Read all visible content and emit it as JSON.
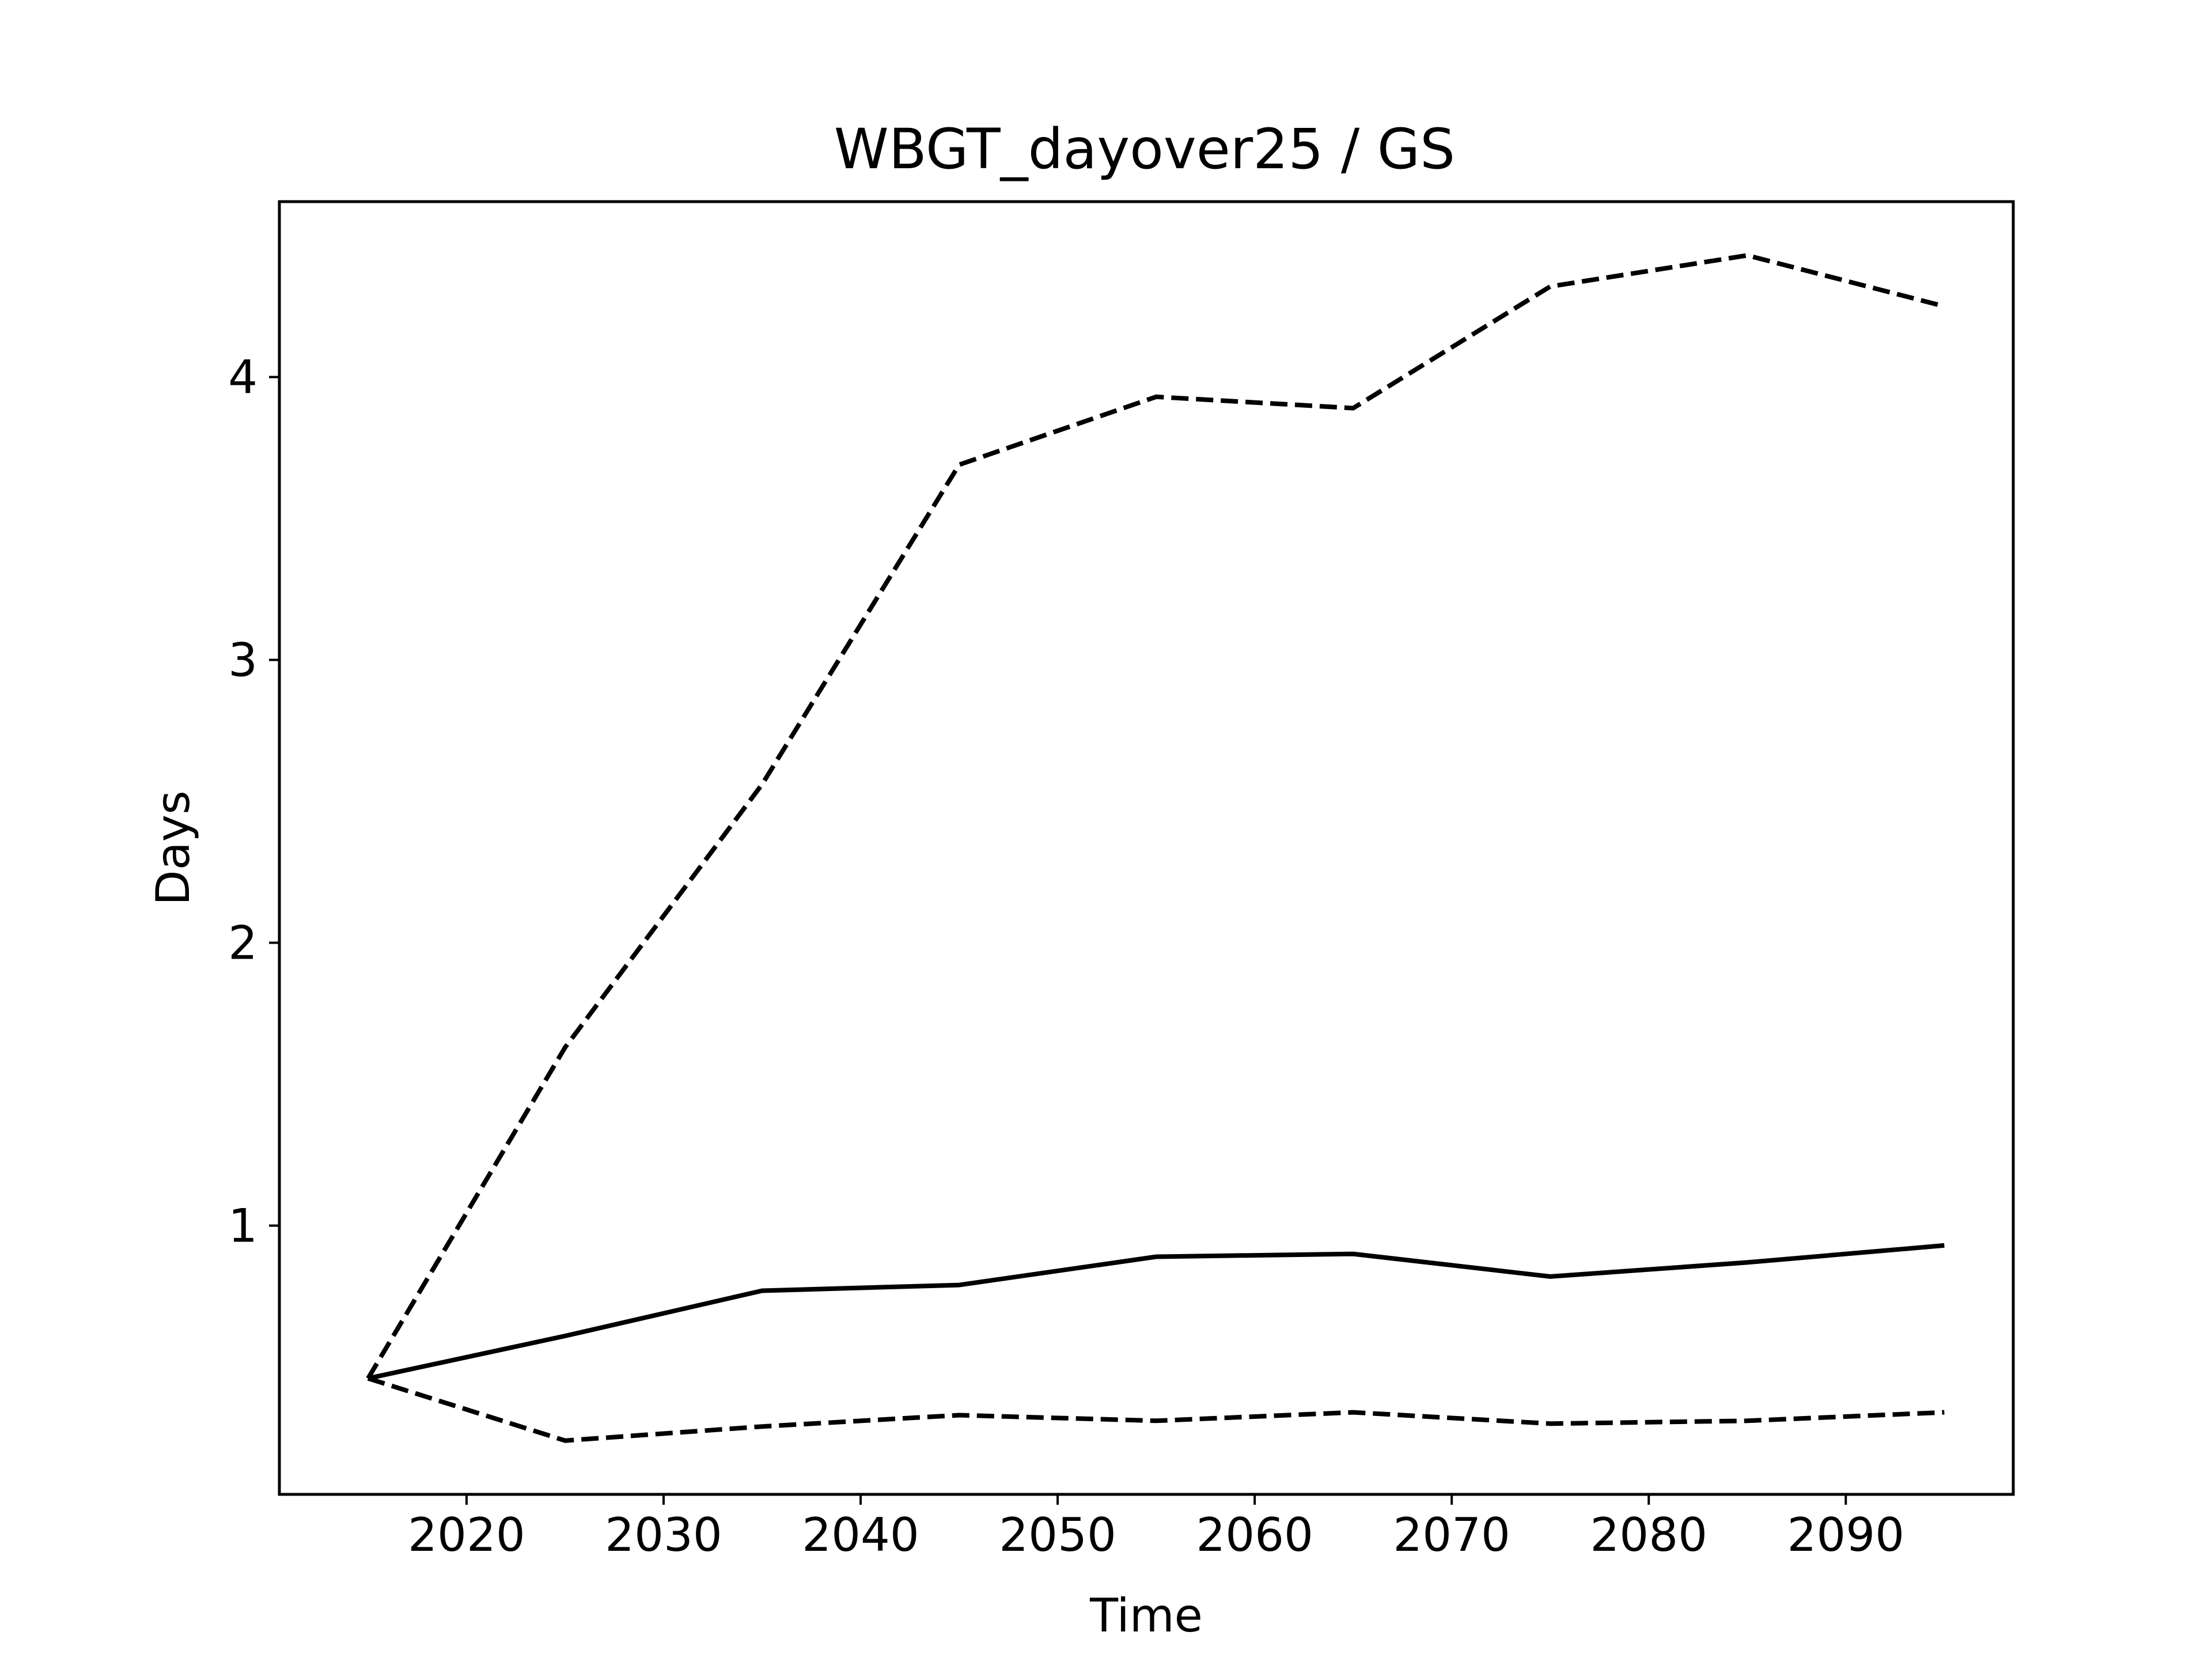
{
  "chart_data": {
    "type": "line",
    "title": "WBGT_dayover25 / GS",
    "xlabel": "Time",
    "ylabel": "Days",
    "xlim": [
      2010.5,
      2098.5
    ],
    "ylim": [
      0.05,
      4.62
    ],
    "xticks": [
      2020,
      2030,
      2040,
      2050,
      2060,
      2070,
      2080,
      2090
    ],
    "yticks": [
      1,
      2,
      3,
      4
    ],
    "grid": false,
    "legend": "none",
    "colors": {
      "line": "#000000",
      "frame": "#000000",
      "background": "#ffffff"
    },
    "series": [
      {
        "style": "dashed",
        "x": [
          2015,
          2025,
          2035,
          2045,
          2055,
          2065,
          2075,
          2085,
          2095
        ],
        "y": [
          0.46,
          1.63,
          2.56,
          3.69,
          3.93,
          3.89,
          4.32,
          4.43,
          4.25
        ]
      },
      {
        "style": "solid",
        "x": [
          2015,
          2025,
          2035,
          2045,
          2055,
          2065,
          2075,
          2085,
          2095
        ],
        "y": [
          0.46,
          0.61,
          0.77,
          0.79,
          0.89,
          0.9,
          0.82,
          0.87,
          0.93
        ]
      },
      {
        "style": "dashed",
        "x": [
          2015,
          2025,
          2035,
          2045,
          2055,
          2065,
          2075,
          2085,
          2095
        ],
        "y": [
          0.46,
          0.24,
          0.29,
          0.33,
          0.31,
          0.34,
          0.3,
          0.31,
          0.34
        ]
      }
    ]
  }
}
